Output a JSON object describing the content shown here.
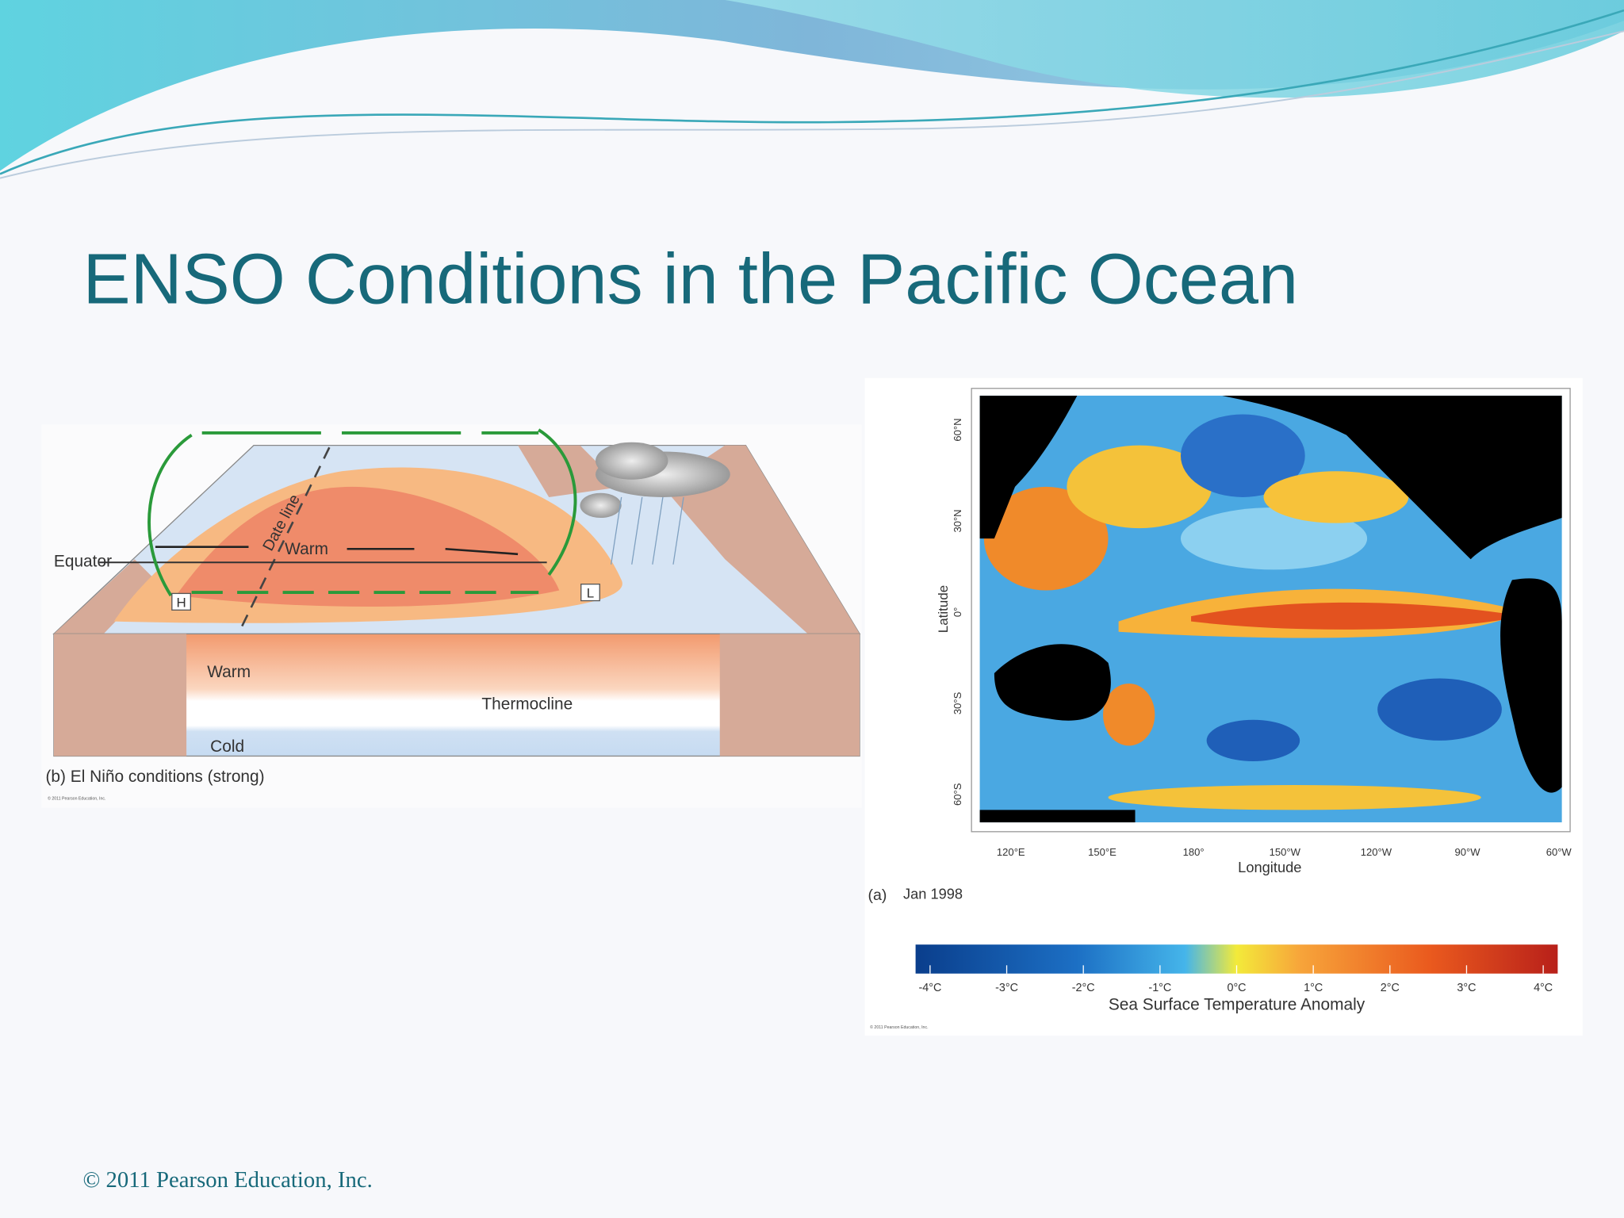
{
  "title": "ENSO Conditions in the Pacific Ocean",
  "diagram": {
    "labels": {
      "equator": "Equator",
      "date_line": "Date line",
      "warm_surface": "Warm",
      "high": "H",
      "low": "L",
      "warm_depth": "Warm",
      "thermocline": "Thermocline",
      "cold": "Cold"
    },
    "caption": "(b) El Niño conditions (strong)",
    "credit": "© 2011 Pearson Education, Inc."
  },
  "map": {
    "lat_labels": [
      "60°N",
      "30°N",
      "0°",
      "30°S",
      "60°S"
    ],
    "lat_title": "Latitude",
    "lon_labels": [
      "120°E",
      "150°E",
      "180°",
      "150°W",
      "120°W",
      "90°W",
      "60°W"
    ],
    "lon_title": "Longitude",
    "panel": "(a)",
    "date": "Jan 1998",
    "scale_labels": [
      "-4°C",
      "-3°C",
      "-2°C",
      "-1°C",
      "0°C",
      "1°C",
      "2°C",
      "3°C",
      "4°C"
    ],
    "scale_title": "Sea Surface Temperature Anomaly",
    "credit": "© 2011 Pearson Education, Inc."
  },
  "footer": "© 2011 Pearson Education, Inc."
}
